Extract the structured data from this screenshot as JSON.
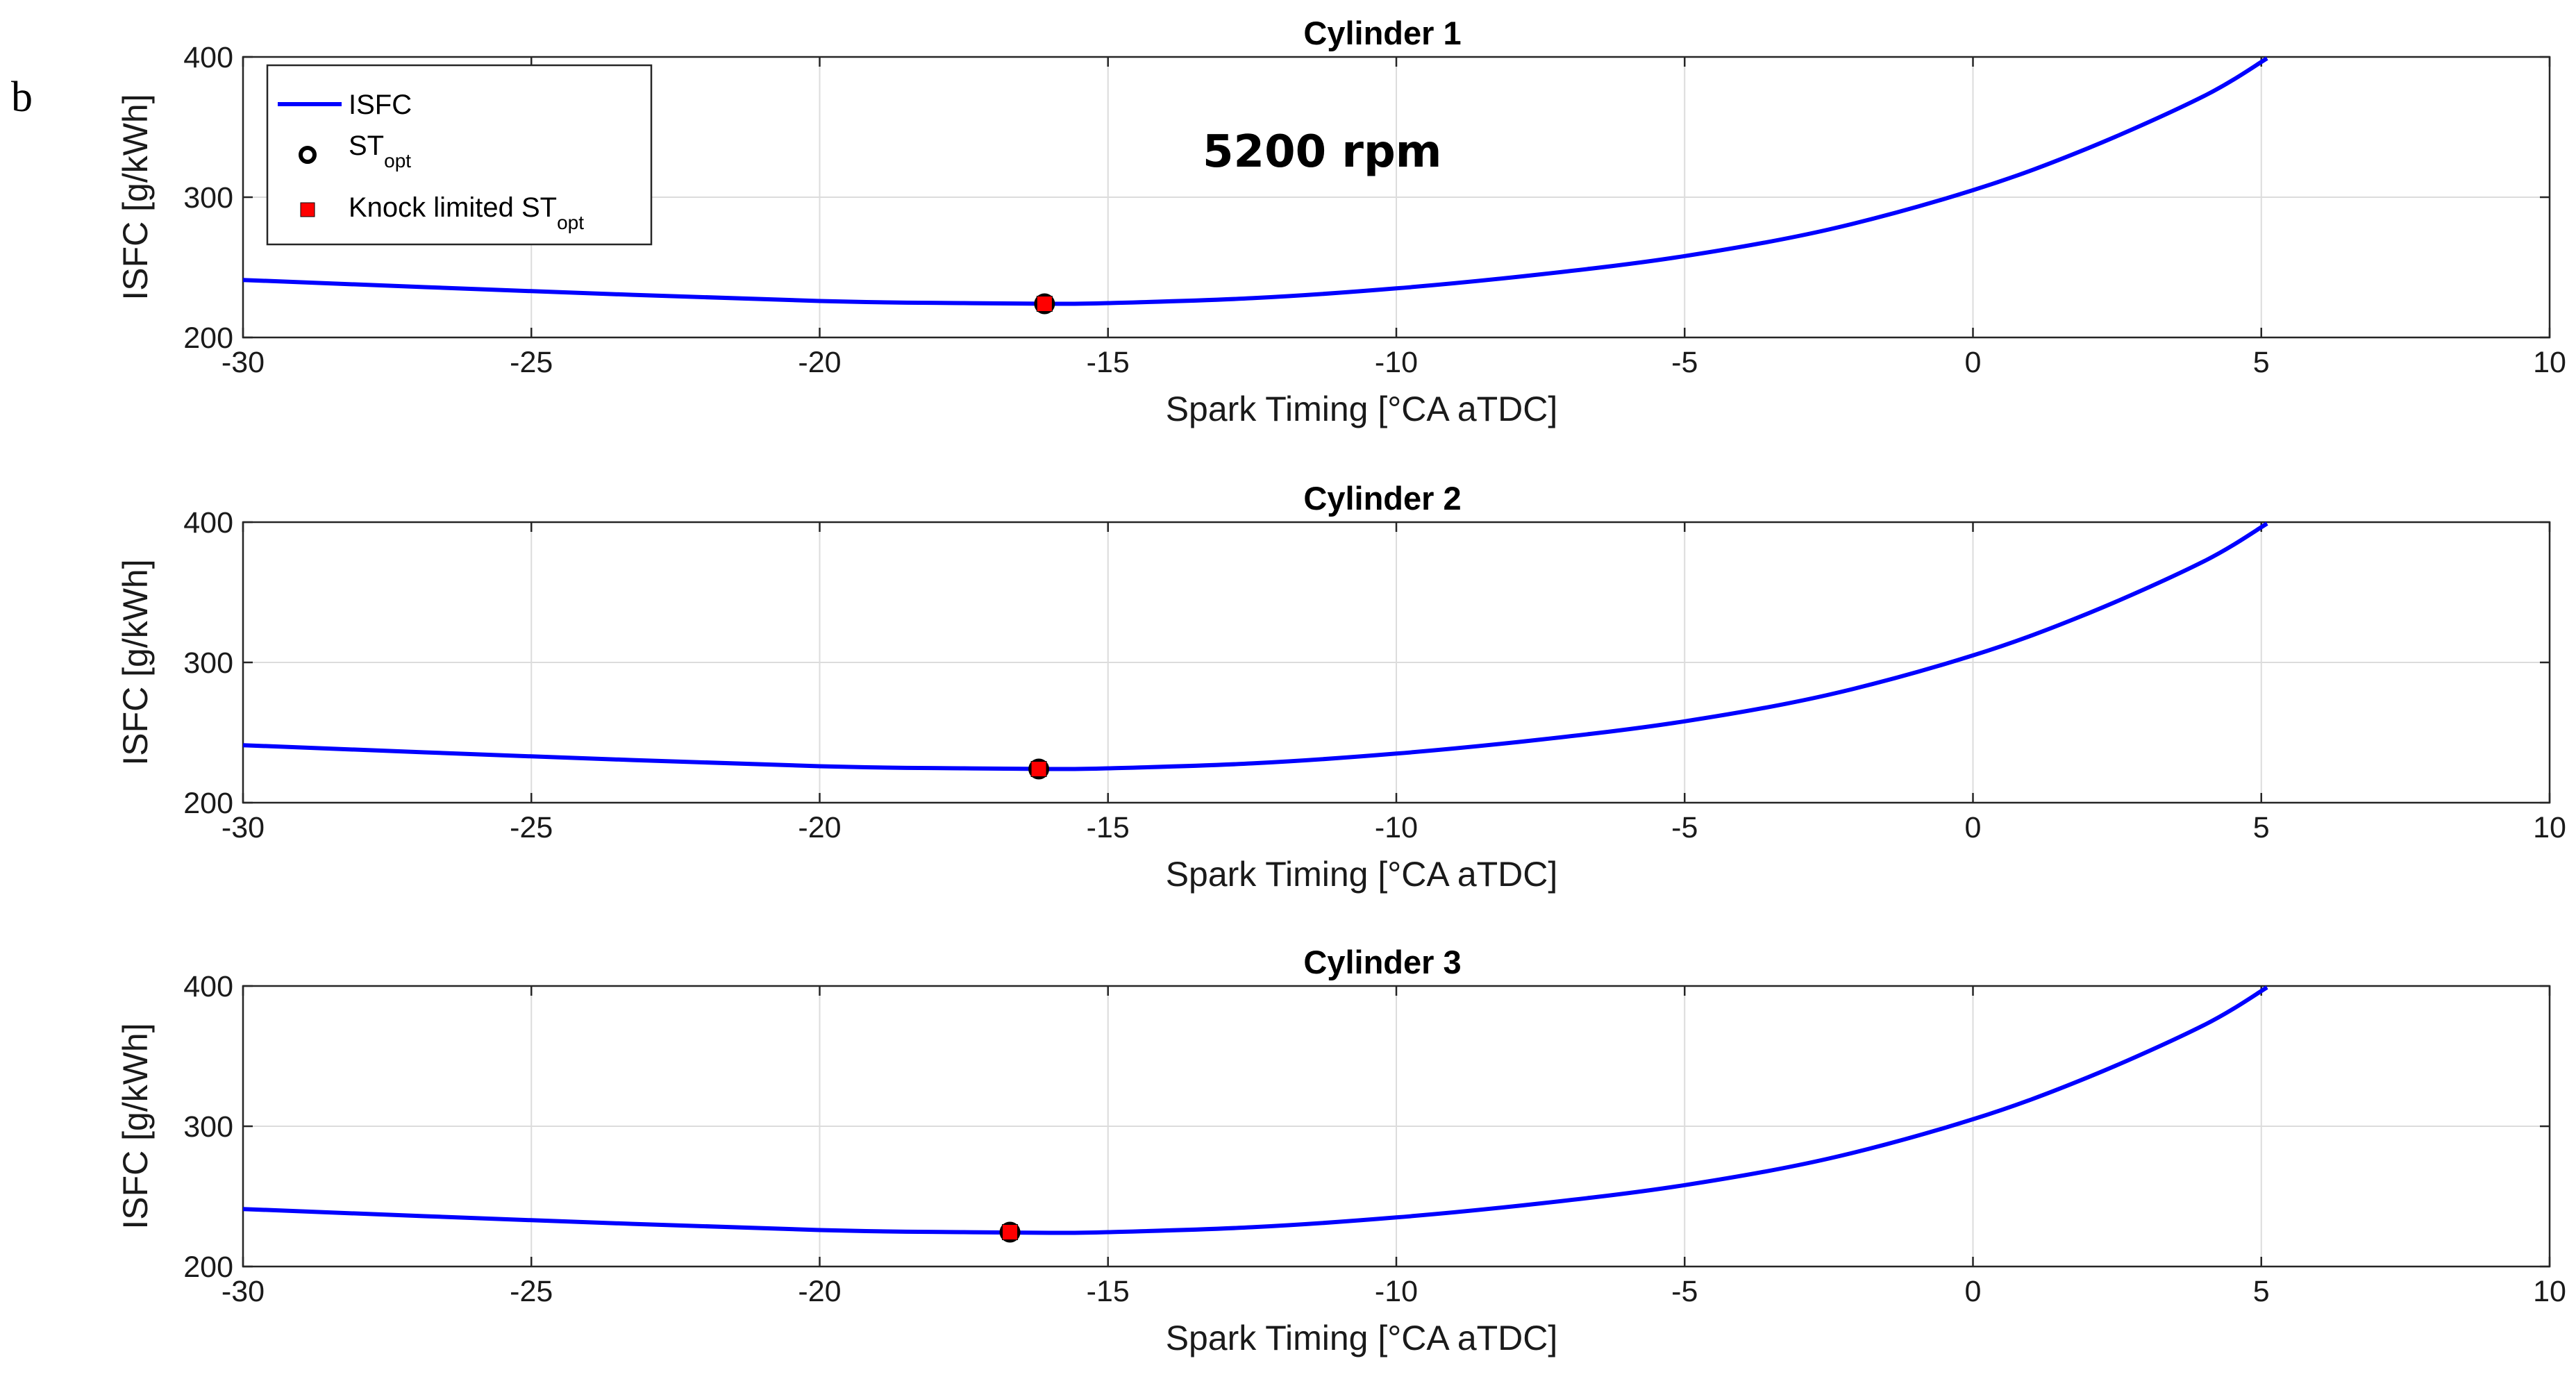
{
  "panel_letter": "b",
  "annotation": "5200 rpm",
  "legend": {
    "isfc": "ISFC",
    "st_opt_main": "ST",
    "st_opt_sub": "opt",
    "knock_main": "Knock limited ST",
    "knock_sub": "opt"
  },
  "colors": {
    "line": "#0000ff",
    "marker_fill": "#ff0000",
    "marker_edge": "#000000",
    "grid": "#dcdcdc",
    "axis": "#262626"
  },
  "chart_data": [
    {
      "type": "line",
      "title": "Cylinder 1",
      "xlabel": "Spark Timing [°CA aTDC]",
      "ylabel": "ISFC [g/kWh]",
      "xlim": [
        -30,
        10
      ],
      "ylim": [
        200,
        400
      ],
      "xticks": [
        -30,
        -25,
        -20,
        -15,
        -10,
        -5,
        0,
        5,
        10
      ],
      "yticks": [
        200,
        300,
        400
      ],
      "grid": true,
      "series": [
        {
          "name": "ISFC",
          "x": [
            -30,
            -25,
            -20,
            -17.5,
            -16,
            -15,
            -12.5,
            -10,
            -7.5,
            -5,
            -2.5,
            0,
            2,
            4,
            5.1
          ],
          "y": [
            241,
            233,
            226,
            224.5,
            224,
            224.5,
            228,
            235,
            245,
            258,
            277,
            305,
            335,
            372,
            399
          ]
        }
      ],
      "st_opt": {
        "x": -16.1,
        "y": 224
      },
      "knock_limited_st_opt": {
        "x": -16.1,
        "y": 224
      }
    },
    {
      "type": "line",
      "title": "Cylinder 2",
      "xlabel": "Spark Timing [°CA aTDC]",
      "ylabel": "ISFC [g/kWh]",
      "xlim": [
        -30,
        10
      ],
      "ylim": [
        200,
        400
      ],
      "xticks": [
        -30,
        -25,
        -20,
        -15,
        -10,
        -5,
        0,
        5,
        10
      ],
      "yticks": [
        200,
        300,
        400
      ],
      "grid": true,
      "series": [
        {
          "name": "ISFC",
          "x": [
            -30,
            -25,
            -20,
            -17.5,
            -16,
            -15,
            -12.5,
            -10,
            -7.5,
            -5,
            -2.5,
            0,
            2,
            4,
            5.1
          ],
          "y": [
            241,
            233,
            226,
            224.5,
            224,
            224.5,
            228,
            235,
            245,
            258,
            277,
            305,
            335,
            372,
            399
          ]
        }
      ],
      "st_opt": {
        "x": -16.2,
        "y": 224
      },
      "knock_limited_st_opt": {
        "x": -16.2,
        "y": 224
      }
    },
    {
      "type": "line",
      "title": "Cylinder 3",
      "xlabel": "Spark Timing [°CA aTDC]",
      "ylabel": "ISFC [g/kWh]",
      "xlim": [
        -30,
        10
      ],
      "ylim": [
        200,
        400
      ],
      "xticks": [
        -30,
        -25,
        -20,
        -15,
        -10,
        -5,
        0,
        5,
        10
      ],
      "yticks": [
        200,
        300,
        400
      ],
      "grid": true,
      "series": [
        {
          "name": "ISFC",
          "x": [
            -30,
            -25,
            -20,
            -17.5,
            -16,
            -15,
            -12.5,
            -10,
            -7.5,
            -5,
            -2.5,
            0,
            2,
            4,
            5.1
          ],
          "y": [
            241,
            233,
            226,
            224.5,
            224,
            224.5,
            228,
            235,
            245,
            258,
            277,
            305,
            335,
            372,
            399
          ]
        }
      ],
      "st_opt": {
        "x": -16.7,
        "y": 224.5
      },
      "knock_limited_st_opt": {
        "x": -16.7,
        "y": 224.5
      }
    }
  ]
}
